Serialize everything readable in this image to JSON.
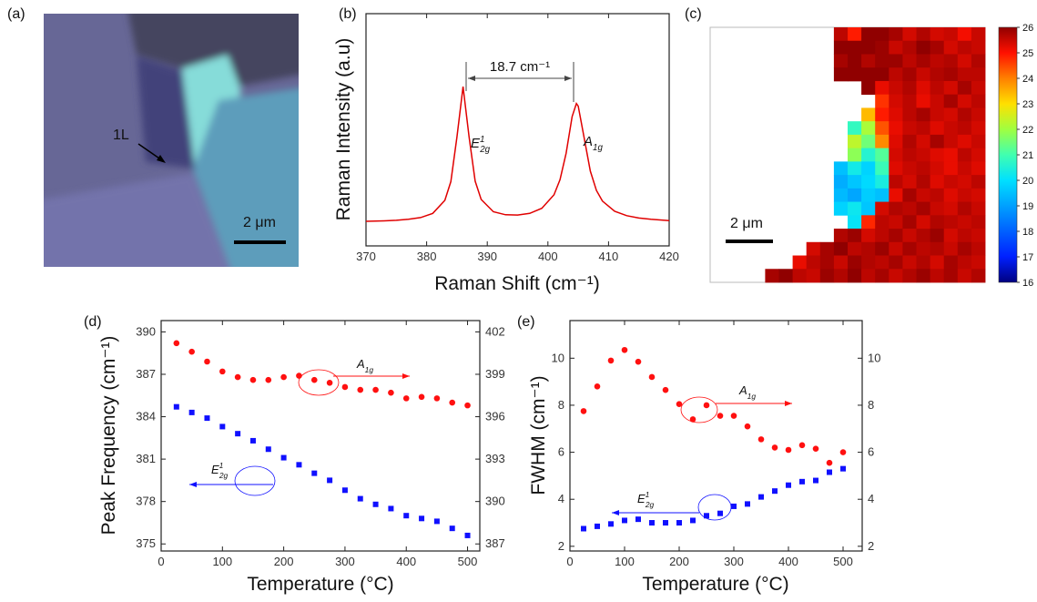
{
  "image_panel": {
    "panel_label": "(a)",
    "annotation": "1L",
    "scale_bar": "2 μm"
  },
  "chart_data": [
    {
      "type": "line",
      "panel_label": "(b)",
      "x_label": "Raman Shift (cm⁻¹)",
      "y_label": "Raman Intensity (a.u)",
      "color": "#e00000",
      "x": [
        370,
        373,
        375,
        377,
        379,
        381,
        383,
        384,
        385,
        386,
        387,
        388,
        389,
        391,
        393,
        395,
        397,
        399,
        401,
        402,
        403,
        404,
        404.7,
        405,
        406,
        407,
        408,
        409,
        411,
        413,
        415,
        417,
        419,
        420
      ],
      "values": [
        0.106,
        0.108,
        0.11,
        0.115,
        0.122,
        0.14,
        0.196,
        0.277,
        0.469,
        0.686,
        0.47,
        0.279,
        0.2,
        0.147,
        0.134,
        0.133,
        0.14,
        0.162,
        0.22,
        0.285,
        0.399,
        0.557,
        0.613,
        0.602,
        0.461,
        0.322,
        0.239,
        0.193,
        0.149,
        0.13,
        0.12,
        0.115,
        0.111,
        0.109
      ],
      "xlim": [
        370,
        420
      ],
      "xticks": [
        370,
        380,
        390,
        400,
        410,
        420
      ],
      "ylim": [
        0,
        1
      ],
      "annotations": {
        "shift": "18.7 cm⁻¹",
        "peaks": [
          {
            "base": "E",
            "sub": "2g",
            "sup": "1"
          },
          {
            "base": "A",
            "sub": "1g"
          }
        ]
      }
    },
    {
      "type": "heatmap",
      "panel_label": "(c)",
      "scale_bar": "2 μm",
      "zlim": [
        16,
        26
      ],
      "zticks": [
        16,
        17,
        18,
        19,
        20,
        21,
        22,
        23,
        24,
        25,
        26
      ],
      "colorscale": [
        "#000080",
        "#0020ff",
        "#0060ff",
        "#00a0ff",
        "#00e0ff",
        "#40ffb0",
        "#a0ff40",
        "#ffe000",
        "#ff8000",
        "#ff1000",
        "#900000"
      ],
      "z": [
        [
          null,
          null,
          null,
          null,
          null,
          null,
          null,
          null,
          null,
          25.6,
          24.9,
          26,
          26,
          25.8,
          25.4,
          25.7,
          25.4,
          25.5,
          25.1,
          25.5
        ],
        [
          null,
          null,
          null,
          null,
          null,
          null,
          null,
          null,
          null,
          26,
          26,
          26,
          25.9,
          25.5,
          25.7,
          26,
          25.8,
          25.4,
          25.6,
          25.5
        ],
        [
          null,
          null,
          null,
          null,
          null,
          null,
          null,
          null,
          null,
          25.8,
          26,
          25.7,
          25.9,
          25.9,
          25.6,
          25.8,
          25.6,
          25.7,
          25.4,
          25.7
        ],
        [
          null,
          null,
          null,
          null,
          null,
          null,
          null,
          null,
          null,
          26,
          26,
          26,
          26,
          25.6,
          25.8,
          25.5,
          25.7,
          25.8,
          25.6,
          25.6
        ],
        [
          null,
          null,
          null,
          null,
          null,
          null,
          null,
          null,
          null,
          null,
          null,
          26,
          25.2,
          25.5,
          25.7,
          25.3,
          25.6,
          25.4,
          25.8,
          25.5
        ],
        [
          null,
          null,
          null,
          null,
          null,
          null,
          null,
          null,
          null,
          null,
          null,
          null,
          24.7,
          25.4,
          25.6,
          25.2,
          25.5,
          25.8,
          25.4,
          25.6
        ],
        [
          null,
          null,
          null,
          null,
          null,
          null,
          null,
          null,
          null,
          null,
          null,
          23.4,
          24.9,
          25.3,
          25.6,
          25.8,
          25.5,
          25.4,
          25.7,
          25.5
        ],
        [
          null,
          null,
          null,
          null,
          null,
          null,
          null,
          null,
          null,
          null,
          20.8,
          22.1,
          24.4,
          25.2,
          25.5,
          25.6,
          25.3,
          25.5,
          25.6,
          25.4
        ],
        [
          null,
          null,
          null,
          null,
          null,
          null,
          null,
          null,
          null,
          null,
          22.3,
          21.5,
          23.9,
          25.3,
          25.7,
          25.4,
          25.8,
          25.5,
          25.3,
          25.5
        ],
        [
          null,
          null,
          null,
          null,
          null,
          null,
          null,
          null,
          null,
          null,
          21.8,
          20.6,
          21.2,
          25.4,
          25.6,
          25.5,
          25.3,
          25.2,
          25.6,
          25.4
        ],
        [
          null,
          null,
          null,
          null,
          null,
          null,
          null,
          null,
          null,
          19.5,
          20.3,
          19.8,
          20.9,
          25.3,
          25.5,
          25.6,
          25.4,
          25.2,
          25.5,
          25.3
        ],
        [
          null,
          null,
          null,
          null,
          null,
          null,
          null,
          null,
          null,
          19.2,
          19.6,
          19.9,
          20.4,
          25.6,
          25.4,
          25.7,
          25.3,
          25.5,
          25.4,
          25.6
        ],
        [
          null,
          null,
          null,
          null,
          null,
          null,
          null,
          null,
          null,
          19.4,
          19.1,
          19.7,
          19.5,
          25.2,
          25.8,
          25.5,
          25.6,
          25.3,
          25.5,
          25.4
        ],
        [
          null,
          null,
          null,
          null,
          null,
          null,
          null,
          null,
          null,
          19.8,
          20.2,
          19.6,
          25.4,
          25.7,
          25.6,
          25.8,
          25.5,
          25.4,
          25.7,
          25.5
        ],
        [
          null,
          null,
          null,
          null,
          null,
          null,
          null,
          null,
          null,
          null,
          20.1,
          24.8,
          25.6,
          25.5,
          25.8,
          25.4,
          25.7,
          25.6,
          25.5,
          25.6
        ],
        [
          null,
          null,
          null,
          null,
          null,
          null,
          null,
          null,
          null,
          25.7,
          25.9,
          25.4,
          25.6,
          25.8,
          25.5,
          25.7,
          25.9,
          25.4,
          25.6,
          25.5
        ],
        [
          null,
          null,
          null,
          null,
          null,
          null,
          null,
          25.4,
          25.8,
          26,
          25.6,
          25.7,
          25.9,
          25.5,
          25.8,
          25.6,
          25.7,
          25.5,
          25.8,
          25.6
        ],
        [
          null,
          null,
          null,
          null,
          null,
          null,
          25.2,
          25.6,
          25.8,
          25.5,
          25.9,
          25.7,
          25.6,
          25.8,
          25.5,
          25.7,
          25.4,
          25.8,
          25.6,
          25.5
        ],
        [
          null,
          null,
          null,
          null,
          25.8,
          26,
          25.6,
          25.5,
          25.9,
          25.7,
          26,
          25.6,
          25.8,
          25.5,
          25.7,
          25.9,
          25.6,
          25.8,
          25.5,
          25.7
        ]
      ]
    },
    {
      "type": "scatter",
      "panel_label": "(d)",
      "x_label": "Temperature (°C)",
      "y_label": "Peak Frequency (cm⁻¹)",
      "x": [
        25,
        50,
        75,
        100,
        125,
        150,
        175,
        200,
        225,
        250,
        275,
        300,
        325,
        350,
        375,
        400,
        425,
        450,
        475,
        500
      ],
      "xlim": [
        0,
        520
      ],
      "xticks": [
        0,
        100,
        200,
        300,
        400,
        500
      ],
      "ylim": [
        374.5,
        390.8
      ],
      "yticks": [
        375,
        378,
        381,
        384,
        387,
        390
      ],
      "y2lim": [
        386.5,
        402.8
      ],
      "y2ticks": [
        387,
        390,
        393,
        396,
        399,
        402
      ],
      "series": [
        {
          "label": {
            "base": "A",
            "sub": "1g"
          },
          "axis": "y2",
          "color": "#ff1010",
          "marker": "circle",
          "values": [
            401.2,
            400.6,
            399.9,
            399.2,
            398.8,
            398.6,
            398.6,
            398.8,
            398.9,
            398.6,
            398.4,
            398.1,
            397.9,
            397.9,
            397.7,
            397.3,
            397.4,
            397.3,
            397.0,
            396.8
          ]
        },
        {
          "label": {
            "base": "E",
            "sub": "2g",
            "sup": "1"
          },
          "axis": "y",
          "color": "#1010ff",
          "marker": "square",
          "values": [
            384.7,
            384.3,
            383.9,
            383.3,
            382.8,
            382.3,
            381.7,
            381.1,
            380.6,
            380.0,
            379.5,
            378.8,
            378.2,
            377.8,
            377.5,
            377.0,
            376.8,
            376.6,
            376.1,
            375.6
          ]
        }
      ]
    },
    {
      "type": "scatter",
      "panel_label": "(e)",
      "x_label": "Temperature (°C)",
      "y_label": "FWHM (cm⁻¹)",
      "x": [
        25,
        50,
        75,
        100,
        125,
        150,
        175,
        200,
        225,
        250,
        275,
        300,
        325,
        350,
        375,
        400,
        425,
        450,
        475,
        500
      ],
      "xlim": [
        0,
        535
      ],
      "xticks": [
        0,
        100,
        200,
        300,
        400,
        500
      ],
      "ylim": [
        1.8,
        11.6
      ],
      "yticks": [
        2,
        4,
        6,
        8,
        10
      ],
      "y2lim": [
        1.8,
        11.6
      ],
      "y2ticks": [
        2,
        4,
        6,
        8,
        10
      ],
      "series": [
        {
          "label": {
            "base": "A",
            "sub": "1g"
          },
          "axis": "y2",
          "color": "#ff1010",
          "marker": "circle",
          "values": [
            7.75,
            8.8,
            9.9,
            10.35,
            9.85,
            9.2,
            8.65,
            8.05,
            7.4,
            8.0,
            7.55,
            7.55,
            7.1,
            6.55,
            6.2,
            6.1,
            6.3,
            6.15,
            5.55,
            6.0
          ]
        },
        {
          "label": {
            "base": "E",
            "sub": "2g",
            "sup": "1"
          },
          "axis": "y",
          "color": "#1010ff",
          "marker": "square",
          "values": [
            2.75,
            2.85,
            2.95,
            3.1,
            3.15,
            3.0,
            3.0,
            3.0,
            3.1,
            3.3,
            3.4,
            3.7,
            3.8,
            4.1,
            4.35,
            4.6,
            4.75,
            4.8,
            5.15,
            5.3
          ]
        }
      ]
    }
  ]
}
